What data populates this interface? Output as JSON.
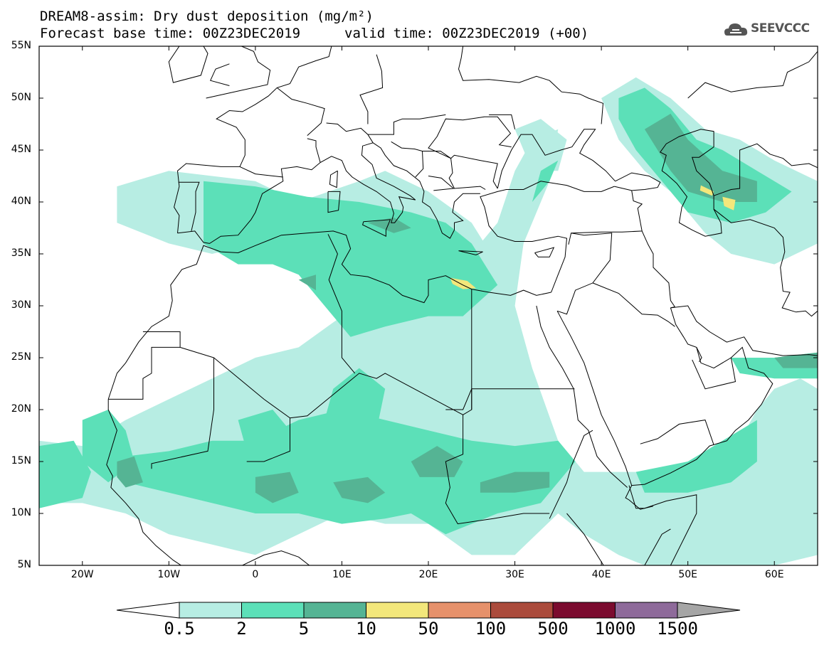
{
  "title": {
    "line1": "DREAM8-assim: Dry dust deposition (mg/m²)",
    "line2_left": "Forecast base time: 00Z23DEC2019",
    "line2_right": "valid time: 00Z23DEC2019 (+00)"
  },
  "logo": {
    "text": "SEEVCCC",
    "icon": "cloud-icon"
  },
  "map": {
    "projection": "lat-lon",
    "lon_range": [
      -25,
      65
    ],
    "lat_range": [
      5,
      55
    ],
    "lat_ticks": [
      "5N",
      "10N",
      "15N",
      "20N",
      "25N",
      "30N",
      "35N",
      "40N",
      "45N",
      "50N",
      "55N"
    ],
    "lon_ticks": [
      "20W",
      "10W",
      "0",
      "10E",
      "20E",
      "30E",
      "40E",
      "50E",
      "60E"
    ]
  },
  "colorbar": {
    "labels": [
      "0.5",
      "2",
      "5",
      "10",
      "50",
      "100",
      "500",
      "1000",
      "1500"
    ],
    "colors": [
      "#ffffff",
      "#b7ede3",
      "#5ce0b8",
      "#55b494",
      "#f3e77b",
      "#e6916b",
      "#ab4b3c",
      "#7b0b2f",
      "#8e6a9a",
      "#a5a5a5"
    ]
  }
}
